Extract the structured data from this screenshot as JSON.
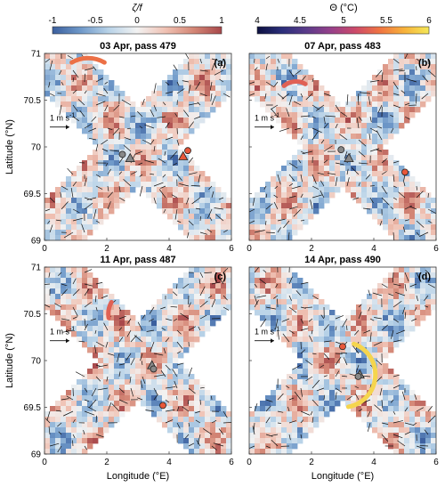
{
  "colorbars": [
    {
      "label": "ζ/f",
      "ticks": [
        "-1",
        "-0.5",
        "0",
        "0.5",
        "1"
      ],
      "range": [
        -1,
        1
      ],
      "colors": [
        "#3b5f9e",
        "#6f99c9",
        "#b9d3e8",
        "#f2f2f2",
        "#f0c2b4",
        "#d48776",
        "#a8484b"
      ]
    },
    {
      "label": "Θ (°C)",
      "ticks": [
        "4",
        "4.5",
        "5",
        "5.5",
        "6"
      ],
      "range": [
        4,
        6
      ],
      "colors": [
        "#0d1040",
        "#2a2e7a",
        "#5a3b8a",
        "#96408a",
        "#cc4a6a",
        "#f07442",
        "#f7b23b",
        "#f4e858"
      ]
    }
  ],
  "axes": {
    "xlabel": "Longitude (°E)",
    "ylabel": "Latitude (°N)",
    "xticks": [
      "0",
      "2",
      "4",
      "6"
    ],
    "yticks": [
      "69",
      "69.5",
      "70",
      "70.5",
      "71"
    ],
    "xlim": [
      0,
      6
    ],
    "ylim": [
      69,
      71
    ],
    "scale_label": "1 m s",
    "scale_exp": "-1"
  },
  "chart_data": [
    {
      "type": "heatmap",
      "title": "03 Apr, pass 479",
      "panel_label": "(a)",
      "markers": {
        "gray_circle": [
          2.5,
          69.92
        ],
        "red_circle": [
          4.6,
          69.96
        ],
        "gray_triangle": [
          2.75,
          69.88
        ],
        "red_triangle": [
          4.45,
          69.9
        ]
      },
      "theta_arc": {
        "center": [
          1.4,
          70.6
        ],
        "radius": 0.35,
        "start_deg": 60,
        "end_deg": 120,
        "theta_c": 5.4
      }
    },
    {
      "type": "heatmap",
      "title": "07 Apr, pass 483",
      "panel_label": "(b)",
      "markers": {
        "gray_circle": [
          2.95,
          69.97
        ],
        "red_circle": [
          5.0,
          69.73
        ],
        "gray_triangle": [
          3.2,
          69.88
        ]
      },
      "theta_arc": {
        "center": [
          1.5,
          70.5
        ],
        "radius": 0.2,
        "start_deg": 60,
        "end_deg": 130,
        "theta_c": 5.3
      }
    },
    {
      "type": "heatmap",
      "title": "11 Apr, pass 487",
      "panel_label": "(c)",
      "markers": {
        "gray_circle": [
          3.5,
          69.91
        ],
        "red_circle": [
          3.8,
          69.52
        ],
        "gray_triangle": [
          3.45,
          69.95
        ]
      },
      "theta_arc": {
        "center": [
          2.8,
          70.5
        ],
        "radius": 0.25,
        "start_deg": 150,
        "end_deg": 190,
        "theta_c": 5.3
      }
    },
    {
      "type": "heatmap",
      "title": "14 Apr, pass 490",
      "panel_label": "(d)",
      "markers": {
        "gray_circle": [
          3.5,
          69.83
        ],
        "red_circle": [
          3.0,
          70.15
        ],
        "gray_triangle": [
          3.55,
          69.85
        ]
      },
      "theta_arc": {
        "center": [
          3.0,
          69.85
        ],
        "radius": 0.35,
        "start_deg": -80,
        "end_deg": 70,
        "theta_c": 5.9
      }
    }
  ]
}
